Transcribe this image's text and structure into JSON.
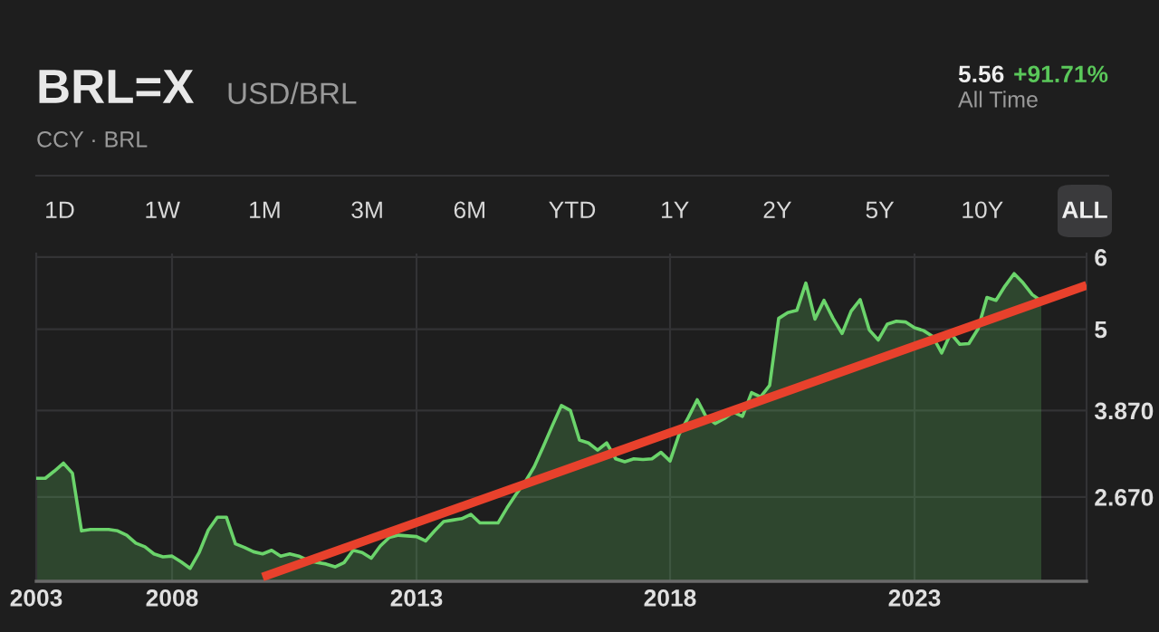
{
  "chart_data": {
    "type": "area",
    "title": "BRL=X",
    "subtitle": "USD/BRL",
    "annotations": [
      "CCY · BRL",
      "5.56",
      "+91.71%",
      "All Time",
      "1D",
      "1W",
      "1M",
      "3M",
      "6M",
      "YTD",
      "1Y",
      "2Y",
      "5Y",
      "10Y",
      "ALL"
    ],
    "categories": [
      "2003",
      null,
      null,
      null,
      null,
      null,
      null,
      null,
      null,
      null,
      null,
      null,
      null,
      null,
      null,
      "2008",
      null,
      null,
      null,
      null,
      null,
      null,
      null,
      null,
      null,
      null,
      null,
      null,
      null,
      null,
      null,
      null,
      null,
      null,
      null,
      null,
      null,
      null,
      null,
      null,
      null,
      null,
      "2013",
      null,
      null,
      null,
      null,
      null,
      null,
      null,
      null,
      null,
      null,
      null,
      null,
      null,
      null,
      null,
      null,
      null,
      null,
      null,
      null,
      null,
      null,
      null,
      null,
      null,
      null,
      null,
      "2018",
      null,
      null,
      null,
      null,
      null,
      null,
      null,
      null,
      null,
      null,
      null,
      null,
      null,
      null,
      null,
      null,
      null,
      null,
      null,
      null,
      null,
      null,
      null,
      null,
      null,
      null,
      "2023",
      null,
      null,
      null,
      null,
      null,
      null,
      null,
      null,
      null,
      null,
      null,
      null,
      null,
      null,
      null,
      null,
      null,
      null,
      null
    ],
    "series": [
      {
        "color": "#6bd46b",
        "values": [
          2.93,
          2.93,
          3.03,
          3.14,
          3.0,
          2.2,
          2.22,
          2.22,
          2.22,
          2.2,
          2.14,
          2.03,
          1.98,
          1.88,
          1.84,
          1.85,
          1.77,
          1.68,
          1.9,
          2.21,
          2.39,
          2.39,
          2.02,
          1.97,
          1.91,
          1.88,
          1.93,
          1.85,
          1.88,
          1.85,
          1.79,
          1.76,
          1.74,
          1.7,
          1.76,
          1.93,
          1.9,
          1.82,
          1.99,
          2.11,
          2.14,
          2.13,
          2.12,
          2.06,
          2.2,
          2.33,
          2.35,
          2.37,
          2.43,
          2.31,
          2.31,
          2.31,
          2.52,
          2.71,
          2.88,
          3.09,
          3.37,
          3.66,
          3.94,
          3.87,
          3.46,
          3.42,
          3.32,
          3.42,
          3.2,
          3.16,
          3.2,
          3.19,
          3.2,
          3.29,
          3.17,
          3.54,
          3.77,
          4.02,
          3.78,
          3.69,
          3.76,
          3.85,
          3.79,
          4.12,
          4.06,
          4.22,
          5.15,
          5.23,
          5.26,
          5.64,
          5.14,
          5.4,
          5.15,
          4.94,
          5.25,
          5.41,
          4.99,
          4.85,
          5.07,
          5.11,
          5.1,
          5.02,
          4.98,
          4.9,
          4.67,
          4.94,
          4.79,
          4.8,
          5.0,
          5.44,
          5.4,
          5.6,
          5.77,
          5.64,
          5.48,
          5.39,
          null,
          null,
          null,
          null,
          null
        ]
      },
      {
        "type": "line",
        "color": "#e8412c",
        "values": [
          null,
          null,
          null,
          null,
          null,
          null,
          null,
          null,
          null,
          null,
          null,
          null,
          null,
          null,
          null,
          null,
          null,
          null,
          null,
          null,
          null,
          null,
          null,
          null,
          null,
          1.56,
          null,
          null,
          null,
          null,
          null,
          null,
          null,
          null,
          null,
          null,
          null,
          null,
          null,
          null,
          null,
          null,
          null,
          null,
          null,
          null,
          null,
          null,
          null,
          null,
          null,
          null,
          null,
          null,
          null,
          null,
          null,
          null,
          null,
          null,
          null,
          null,
          null,
          null,
          null,
          null,
          null,
          null,
          null,
          null,
          null,
          null,
          null,
          null,
          null,
          null,
          null,
          null,
          null,
          null,
          null,
          null,
          null,
          null,
          null,
          null,
          null,
          null,
          null,
          null,
          null,
          null,
          null,
          null,
          null,
          null,
          null,
          null,
          null,
          null,
          null,
          null,
          null,
          null,
          null,
          null,
          null,
          null,
          null,
          null,
          null,
          null,
          null,
          null,
          null,
          null,
          5.61
        ]
      }
    ],
    "ylim": [
      1.5,
      6.05
    ],
    "yticks": [
      6,
      5,
      {
        "value": 3.87,
        "label": "3.870"
      },
      {
        "value": 2.67,
        "label": "2.670"
      }
    ],
    "grid": true
  }
}
